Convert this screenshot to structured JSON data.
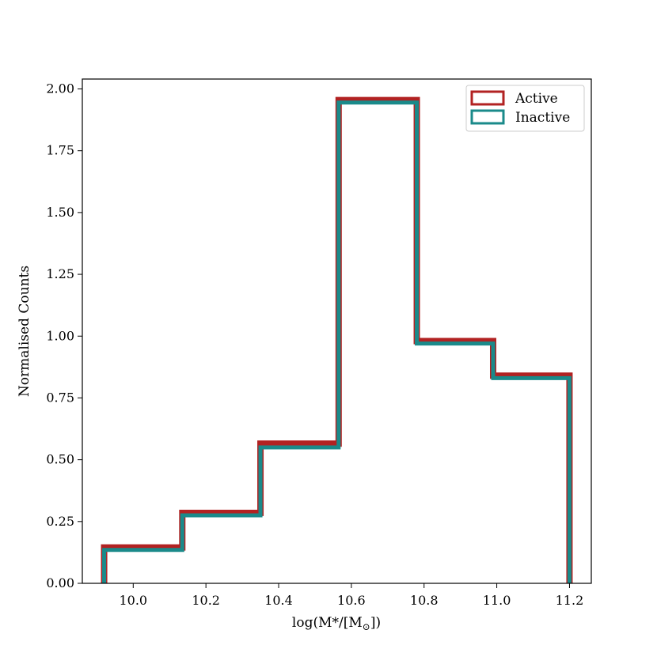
{
  "chart_data": {
    "type": "histogram",
    "xlabel": "log(M*/[M",
    "xlabel_subscript": "⊙",
    "xlabel_suffix": "])",
    "ylabel": "Normalised Counts",
    "xlim": [
      9.86,
      11.26
    ],
    "ylim": [
      0,
      2.04
    ],
    "x_ticks": [
      10.0,
      10.2,
      10.4,
      10.6,
      10.8,
      11.0,
      11.2
    ],
    "x_tick_labels": [
      "10.0",
      "10.2",
      "10.4",
      "10.6",
      "10.8",
      "11.0",
      "11.2"
    ],
    "y_ticks": [
      0.0,
      0.25,
      0.5,
      0.75,
      1.0,
      1.25,
      1.5,
      1.75,
      2.0
    ],
    "y_tick_labels": [
      "0.00",
      "0.25",
      "0.50",
      "0.75",
      "1.00",
      "1.25",
      "1.50",
      "1.75",
      "2.00"
    ],
    "bin_edges": [
      9.92,
      10.135,
      10.35,
      10.565,
      10.78,
      10.99,
      11.2
    ],
    "series": [
      {
        "name": "Active",
        "color": "#b22222",
        "values": [
          0.145,
          0.285,
          0.565,
          1.955,
          0.98,
          0.84
        ]
      },
      {
        "name": "Inactive",
        "color": "#1a8a8a",
        "values": [
          0.135,
          0.275,
          0.55,
          1.945,
          0.97,
          0.83
        ]
      }
    ],
    "legend_position": "top-right",
    "grid": false
  }
}
